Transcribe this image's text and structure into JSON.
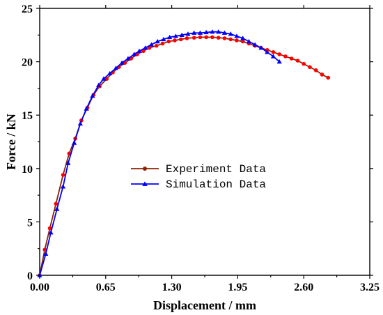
{
  "chart_data": {
    "type": "line",
    "xlabel": "Displacement / mm",
    "ylabel": "Force / kN",
    "xlim": [
      0,
      3.25
    ],
    "ylim": [
      0,
      25
    ],
    "xticks": [
      "0.00",
      "0.65",
      "1.30",
      "1.95",
      "2.60",
      "3.25"
    ],
    "xtick_values": [
      0,
      0.65,
      1.3,
      1.95,
      2.6,
      3.25
    ],
    "yticks": [
      "0",
      "5",
      "10",
      "15",
      "20",
      "25"
    ],
    "ytick_values": [
      0,
      5,
      10,
      15,
      20,
      25
    ],
    "grid": false,
    "legend_position": "center",
    "series": [
      {
        "name": "Experiment Data",
        "line_color": "#8b2500",
        "marker_color": "#ff0000",
        "marker": "circle",
        "points": [
          [
            0.0,
            0.0
          ],
          [
            0.05,
            2.4
          ],
          [
            0.1,
            4.4
          ],
          [
            0.16,
            6.7
          ],
          [
            0.23,
            9.4
          ],
          [
            0.29,
            11.4
          ],
          [
            0.35,
            12.8
          ],
          [
            0.41,
            14.5
          ],
          [
            0.47,
            15.7
          ],
          [
            0.53,
            16.9
          ],
          [
            0.59,
            17.7
          ],
          [
            0.66,
            18.4
          ],
          [
            0.72,
            19.0
          ],
          [
            0.78,
            19.5
          ],
          [
            0.84,
            19.9
          ],
          [
            0.9,
            20.3
          ],
          [
            0.96,
            20.7
          ],
          [
            1.02,
            21.0
          ],
          [
            1.08,
            21.3
          ],
          [
            1.15,
            21.5
          ],
          [
            1.21,
            21.7
          ],
          [
            1.27,
            21.9
          ],
          [
            1.33,
            22.0
          ],
          [
            1.39,
            22.1
          ],
          [
            1.45,
            22.2
          ],
          [
            1.52,
            22.25
          ],
          [
            1.58,
            22.3
          ],
          [
            1.64,
            22.3
          ],
          [
            1.7,
            22.3
          ],
          [
            1.76,
            22.25
          ],
          [
            1.82,
            22.2
          ],
          [
            1.88,
            22.1
          ],
          [
            1.94,
            22.0
          ],
          [
            2.0,
            21.9
          ],
          [
            2.06,
            21.7
          ],
          [
            2.12,
            21.5
          ],
          [
            2.18,
            21.3
          ],
          [
            2.24,
            21.1
          ],
          [
            2.3,
            20.9
          ],
          [
            2.36,
            20.7
          ],
          [
            2.42,
            20.5
          ],
          [
            2.48,
            20.3
          ],
          [
            2.54,
            20.1
          ],
          [
            2.6,
            19.8
          ],
          [
            2.66,
            19.5
          ],
          [
            2.72,
            19.2
          ],
          [
            2.78,
            18.8
          ],
          [
            2.84,
            18.5
          ]
        ]
      },
      {
        "name": "Simulation Data",
        "line_color": "#0000ff",
        "marker_color": "#0000ff",
        "marker": "triangle",
        "points": [
          [
            0.0,
            0.0
          ],
          [
            0.06,
            2.0
          ],
          [
            0.11,
            4.0
          ],
          [
            0.17,
            6.2
          ],
          [
            0.23,
            8.3
          ],
          [
            0.28,
            10.5
          ],
          [
            0.34,
            12.4
          ],
          [
            0.4,
            14.2
          ],
          [
            0.46,
            15.6
          ],
          [
            0.52,
            16.8
          ],
          [
            0.58,
            17.8
          ],
          [
            0.63,
            18.4
          ],
          [
            0.69,
            18.9
          ],
          [
            0.75,
            19.4
          ],
          [
            0.81,
            19.9
          ],
          [
            0.87,
            20.3
          ],
          [
            0.93,
            20.7
          ],
          [
            0.98,
            21.0
          ],
          [
            1.04,
            21.3
          ],
          [
            1.1,
            21.6
          ],
          [
            1.16,
            21.9
          ],
          [
            1.22,
            22.1
          ],
          [
            1.28,
            22.3
          ],
          [
            1.34,
            22.4
          ],
          [
            1.4,
            22.5
          ],
          [
            1.46,
            22.6
          ],
          [
            1.52,
            22.7
          ],
          [
            1.58,
            22.7
          ],
          [
            1.64,
            22.75
          ],
          [
            1.7,
            22.8
          ],
          [
            1.76,
            22.8
          ],
          [
            1.82,
            22.7
          ],
          [
            1.88,
            22.6
          ],
          [
            1.94,
            22.4
          ],
          [
            2.0,
            22.2
          ],
          [
            2.06,
            21.9
          ],
          [
            2.12,
            21.6
          ],
          [
            2.18,
            21.3
          ],
          [
            2.24,
            20.9
          ],
          [
            2.3,
            20.5
          ],
          [
            2.36,
            20.0
          ]
        ]
      }
    ]
  }
}
